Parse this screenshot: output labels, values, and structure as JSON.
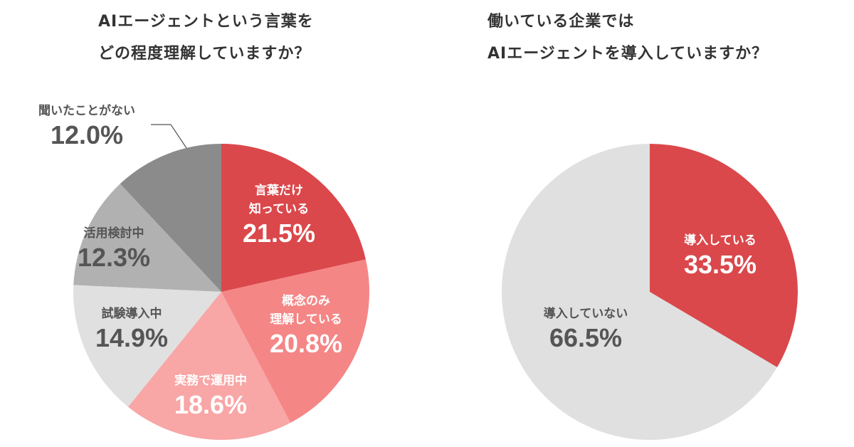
{
  "chart_data": [
    {
      "type": "pie",
      "title": [
        "AIエージェントという言葉を",
        "どの程度理解していますか？"
      ],
      "slices": [
        {
          "label": "言葉だけ知っている",
          "label_lines": [
            "言葉だけ",
            "知っている"
          ],
          "value": 21.5,
          "display": "21.5%",
          "color": "#da484b"
        },
        {
          "label": "概念のみ理解している",
          "label_lines": [
            "概念のみ",
            "理解している"
          ],
          "value": 20.8,
          "display": "20.8%",
          "color": "#f58686"
        },
        {
          "label": "実務で運用中",
          "label_lines": [
            "実務で運用中"
          ],
          "value": 18.6,
          "display": "18.6%",
          "color": "#f8a6a6"
        },
        {
          "label": "試験導入中",
          "label_lines": [
            "試験導入中"
          ],
          "value": 14.9,
          "display": "14.9%",
          "color": "#e0e0e0"
        },
        {
          "label": "活用検討中",
          "label_lines": [
            "活用検討中"
          ],
          "value": 12.3,
          "display": "12.3%",
          "color": "#b1b1b1"
        },
        {
          "label": "聞いたことがない",
          "label_lines": [
            "聞いたことがない"
          ],
          "value": 12.0,
          "display": "12.0%",
          "color": "#8b8b8b"
        }
      ]
    },
    {
      "type": "pie",
      "title": [
        "働いている企業では",
        "AIエージェントを導入していますか？"
      ],
      "slices": [
        {
          "label": "導入している",
          "label_lines": [
            "導入している"
          ],
          "value": 33.5,
          "display": "33.5%",
          "color": "#da484b"
        },
        {
          "label": "導入していない",
          "label_lines": [
            "導入していない"
          ],
          "value": 66.5,
          "display": "66.5%",
          "color": "#e0e0e0"
        }
      ]
    }
  ]
}
